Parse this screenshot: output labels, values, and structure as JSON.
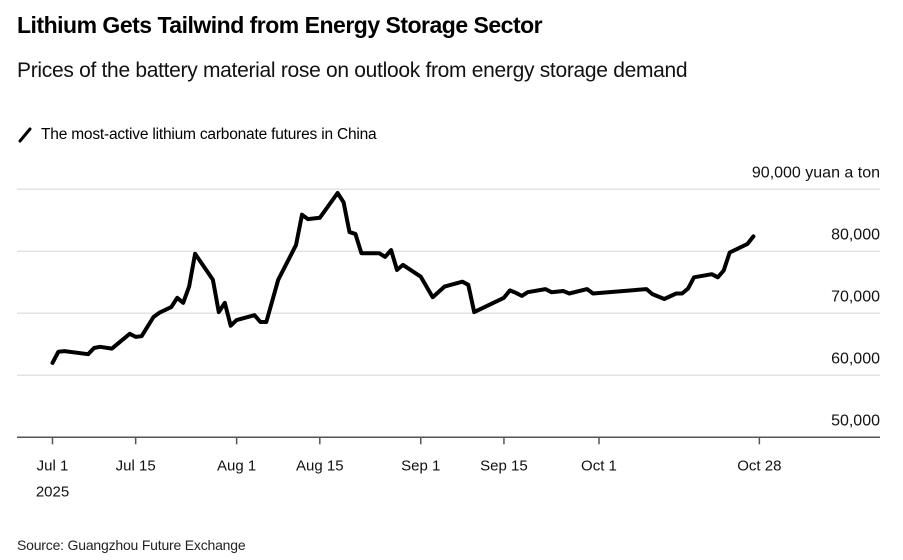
{
  "chart_data": {
    "type": "line",
    "title": "Lithium Gets Tailwind from Energy Storage Sector",
    "subtitle": "Prices of the battery material rose on outlook from energy storage demand",
    "legend": [
      {
        "name": "The most-active lithium carbonate futures in China",
        "color": "#000000"
      }
    ],
    "legend_placement": "top-left",
    "xlabel": "",
    "ylabel": "yuan a ton",
    "y_unit_label": "90,000 yuan a ton",
    "ylim": [
      50000,
      90000
    ],
    "yticks": [
      50000,
      60000,
      70000,
      80000,
      90000
    ],
    "ytick_labels": [
      "50,000",
      "60,000",
      "70,000",
      "80,000",
      "90,000 yuan a ton"
    ],
    "grid": true,
    "x_start_date": "2025-07-01",
    "xlim_days": [
      -6,
      139
    ],
    "xticks": [
      {
        "day": 0,
        "label": "Jul 1",
        "sublabel": "2025"
      },
      {
        "day": 14,
        "label": "Jul 15",
        "sublabel": ""
      },
      {
        "day": 31,
        "label": "Aug 1",
        "sublabel": ""
      },
      {
        "day": 45,
        "label": "Aug 15",
        "sublabel": ""
      },
      {
        "day": 62,
        "label": "Sep 1",
        "sublabel": ""
      },
      {
        "day": 76,
        "label": "Sep 15",
        "sublabel": ""
      },
      {
        "day": 92,
        "label": "Oct 1",
        "sublabel": ""
      },
      {
        "day": 119,
        "label": "Oct 28",
        "sublabel": ""
      }
    ],
    "series": [
      {
        "name": "The most-active lithium carbonate futures in China",
        "color": "#000000",
        "x_days": [
          0,
          1,
          2,
          6,
          7,
          8,
          10,
          13,
          14,
          15,
          17,
          18,
          20,
          21,
          22,
          23,
          24,
          27,
          28,
          29,
          30,
          31,
          34,
          35,
          36,
          38,
          41,
          42,
          43,
          45,
          48,
          49,
          50,
          51,
          52,
          55,
          56,
          57,
          58,
          59,
          62,
          64,
          66,
          69,
          70,
          71,
          76,
          77,
          78,
          79,
          80,
          83,
          84,
          86,
          87,
          90,
          91,
          100,
          101,
          103,
          105,
          106,
          107,
          108,
          111,
          112,
          113,
          114,
          117,
          118
        ],
        "values": [
          62000,
          63800,
          63900,
          63400,
          64400,
          64600,
          64300,
          66700,
          66200,
          66300,
          69400,
          70100,
          71000,
          72500,
          71700,
          74300,
          79600,
          75400,
          70200,
          71700,
          68000,
          68900,
          69700,
          68600,
          68600,
          75400,
          81000,
          85900,
          85200,
          85400,
          89400,
          87900,
          83100,
          82800,
          79700,
          79700,
          79100,
          80200,
          77000,
          77800,
          75900,
          72600,
          74300,
          75100,
          74600,
          70200,
          72500,
          73700,
          73300,
          72800,
          73400,
          73900,
          73400,
          73600,
          73200,
          73900,
          73200,
          73900,
          73100,
          72300,
          73200,
          73200,
          74000,
          75800,
          76300,
          75800,
          76900,
          79800,
          81200,
          82400
        ]
      }
    ],
    "source": "Source: Guangzhou Future Exchange"
  }
}
